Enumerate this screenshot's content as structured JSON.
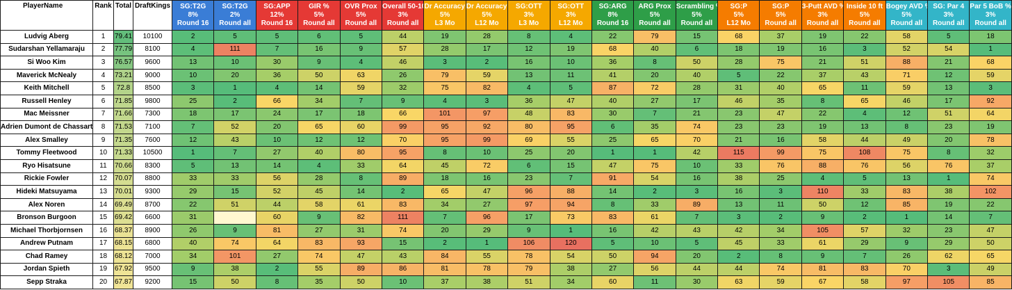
{
  "header": {
    "player_name": "PlayerName",
    "rank": "Rank",
    "total": "Total",
    "draftkings": "DraftKings",
    "stats": [
      {
        "l1": "SG:T2G",
        "l2": "8%",
        "l3": "Round 16",
        "color": "#3a7dd6"
      },
      {
        "l1": "SG:T2G",
        "l2": "2%",
        "l3": "Round all",
        "color": "#3a7dd6"
      },
      {
        "l1": "SG:APP",
        "l2": "12%",
        "l3": "Round 16",
        "color": "#e53935"
      },
      {
        "l1": "GIR %",
        "l2": "5%",
        "l3": "Round all",
        "color": "#e53935"
      },
      {
        "l1": "OVR Prox",
        "l2": "5%",
        "l3": "Round all",
        "color": "#e53935"
      },
      {
        "l1": "Overall 50-100",
        "l2": "3%",
        "l3": "Round all",
        "color": "#e53935"
      },
      {
        "l1": "Dr Accuracy %",
        "l2": "5%",
        "l3": "L3 Mo",
        "color": "#f5a800"
      },
      {
        "l1": "Dr Accuracy %",
        "l2": "5%",
        "l3": "L12 Mo",
        "color": "#f5a800"
      },
      {
        "l1": "SG:OTT",
        "l2": "3%",
        "l3": "L3 Mo",
        "color": "#f5a800"
      },
      {
        "l1": "SG:OTT",
        "l2": "3%",
        "l3": "L12 Mo",
        "color": "#f5a800"
      },
      {
        "l1": "SG:ARG",
        "l2": "8%",
        "l3": "Round 16",
        "color": "#2e9e48"
      },
      {
        "l1": "ARG Prox",
        "l2": "5%",
        "l3": "Round all",
        "color": "#2e9e48"
      },
      {
        "l1": "Scrambling %",
        "l2": "5%",
        "l3": "Round all",
        "color": "#2e9e48"
      },
      {
        "l1": "SG:P",
        "l2": "5%",
        "l3": "L12 Mo",
        "color": "#f57c00"
      },
      {
        "l1": "SG:P",
        "l2": "5%",
        "l3": "Round all",
        "color": "#f57c00"
      },
      {
        "l1": "3-Putt AVD %",
        "l2": "3%",
        "l3": "Round all",
        "color": "#f57c00"
      },
      {
        "l1": "Inside 10 ft",
        "l2": "5%",
        "l3": "Round all",
        "color": "#f57c00"
      },
      {
        "l1": "Bogey AVD %",
        "l2": "5%",
        "l3": "Round all",
        "color": "#33b5c8"
      },
      {
        "l1": "SG: Par 4",
        "l2": "3%",
        "l3": "Round all",
        "color": "#33b5c8"
      },
      {
        "l1": "Par 5 BoB %",
        "l2": "3%",
        "l3": "Round all",
        "color": "#33b5c8"
      }
    ]
  },
  "rows": [
    {
      "name": "Ludvig Aberg",
      "rank": "1",
      "total": "79.41",
      "dk": "10100",
      "stats": [
        "2",
        "5",
        "5",
        "6",
        "5",
        "44",
        "19",
        "28",
        "8",
        "4",
        "22",
        "79",
        "15",
        "68",
        "37",
        "19",
        "22",
        "58",
        "5",
        "18"
      ]
    },
    {
      "name": "Sudarshan Yellamaraju",
      "rank": "2",
      "total": "77.79",
      "dk": "8100",
      "stats": [
        "4",
        "111",
        "7",
        "16",
        "9",
        "57",
        "28",
        "17",
        "12",
        "19",
        "68",
        "40",
        "6",
        "18",
        "19",
        "16",
        "3",
        "52",
        "54",
        "1"
      ]
    },
    {
      "name": "Si Woo Kim",
      "rank": "3",
      "total": "76.57",
      "dk": "9600",
      "stats": [
        "13",
        "10",
        "30",
        "9",
        "4",
        "46",
        "3",
        "2",
        "16",
        "10",
        "36",
        "8",
        "50",
        "28",
        "75",
        "21",
        "51",
        "88",
        "21",
        "68"
      ]
    },
    {
      "name": "Maverick McNealy",
      "rank": "4",
      "total": "73.21",
      "dk": "9000",
      "stats": [
        "10",
        "20",
        "36",
        "50",
        "63",
        "26",
        "79",
        "59",
        "13",
        "11",
        "41",
        "20",
        "40",
        "5",
        "22",
        "37",
        "43",
        "71",
        "12",
        "59"
      ]
    },
    {
      "name": "Keith Mitchell",
      "rank": "5",
      "total": "72.8",
      "dk": "8500",
      "stats": [
        "3",
        "1",
        "4",
        "14",
        "59",
        "32",
        "75",
        "82",
        "4",
        "5",
        "87",
        "72",
        "28",
        "31",
        "40",
        "65",
        "11",
        "59",
        "13",
        "3"
      ]
    },
    {
      "name": "Russell Henley",
      "rank": "6",
      "total": "71.85",
      "dk": "9800",
      "stats": [
        "25",
        "2",
        "66",
        "34",
        "7",
        "9",
        "4",
        "3",
        "36",
        "47",
        "40",
        "27",
        "17",
        "46",
        "35",
        "8",
        "65",
        "46",
        "17",
        "92"
      ]
    },
    {
      "name": "Mac Meissner",
      "rank": "7",
      "total": "71.66",
      "dk": "7300",
      "stats": [
        "18",
        "17",
        "24",
        "17",
        "18",
        "66",
        "101",
        "97",
        "48",
        "83",
        "30",
        "7",
        "21",
        "23",
        "47",
        "22",
        "4",
        "12",
        "51",
        "64"
      ]
    },
    {
      "name": "Adrien Dumont de Chassart",
      "rank": "8",
      "total": "71.53",
      "dk": "7100",
      "stats": [
        "7",
        "52",
        "20",
        "65",
        "60",
        "99",
        "95",
        "92",
        "80",
        "95",
        "6",
        "35",
        "74",
        "23",
        "23",
        "19",
        "13",
        "8",
        "23",
        "19"
      ]
    },
    {
      "name": "Alex Smalley",
      "rank": "9",
      "total": "71.35",
      "dk": "7600",
      "stats": [
        "12",
        "43",
        "10",
        "12",
        "12",
        "70",
        "95",
        "99",
        "69",
        "55",
        "25",
        "65",
        "70",
        "21",
        "16",
        "58",
        "44",
        "49",
        "20",
        "78"
      ]
    },
    {
      "name": "Tommy Fleetwood",
      "rank": "10",
      "total": "71.33",
      "dk": "10500",
      "stats": [
        "1",
        "7",
        "27",
        "40",
        "80",
        "95",
        "8",
        "10",
        "25",
        "20",
        "1",
        "1",
        "42",
        "115",
        "99",
        "75",
        "108",
        "75",
        "8",
        "32"
      ]
    },
    {
      "name": "Ryo Hisatsune",
      "rank": "11",
      "total": "70.66",
      "dk": "8300",
      "stats": [
        "5",
        "13",
        "14",
        "4",
        "33",
        "64",
        "45",
        "72",
        "6",
        "15",
        "47",
        "75",
        "10",
        "33",
        "76",
        "88",
        "76",
        "56",
        "76",
        "37"
      ]
    },
    {
      "name": "Rickie Fowler",
      "rank": "12",
      "total": "70.07",
      "dk": "8800",
      "stats": [
        "33",
        "33",
        "56",
        "28",
        "8",
        "89",
        "18",
        "16",
        "23",
        "7",
        "91",
        "54",
        "16",
        "38",
        "25",
        "4",
        "5",
        "13",
        "1",
        "74"
      ]
    },
    {
      "name": "Hideki Matsuyama",
      "rank": "13",
      "total": "70.01",
      "dk": "9300",
      "stats": [
        "29",
        "15",
        "52",
        "45",
        "14",
        "2",
        "65",
        "47",
        "96",
        "88",
        "14",
        "2",
        "3",
        "16",
        "3",
        "110",
        "33",
        "83",
        "38",
        "102"
      ]
    },
    {
      "name": "Alex Noren",
      "rank": "14",
      "total": "69.49",
      "dk": "8700",
      "stats": [
        "22",
        "51",
        "44",
        "58",
        "61",
        "83",
        "34",
        "27",
        "97",
        "94",
        "8",
        "33",
        "89",
        "13",
        "11",
        "50",
        "12",
        "85",
        "19",
        "22"
      ]
    },
    {
      "name": "Bronson Burgoon",
      "rank": "15",
      "total": "69.42",
      "dk": "6600",
      "stats": [
        "31",
        "",
        "60",
        "9",
        "82",
        "111",
        "7",
        "96",
        "17",
        "73",
        "83",
        "61",
        "7",
        "3",
        "2",
        "9",
        "2",
        "1",
        "14",
        "7"
      ]
    },
    {
      "name": "Michael Thorbjornsen",
      "rank": "16",
      "total": "68.37",
      "dk": "8900",
      "stats": [
        "26",
        "9",
        "81",
        "27",
        "31",
        "74",
        "20",
        "29",
        "9",
        "1",
        "16",
        "42",
        "43",
        "42",
        "34",
        "105",
        "57",
        "32",
        "23",
        "47"
      ]
    },
    {
      "name": "Andrew Putnam",
      "rank": "17",
      "total": "68.15",
      "dk": "6800",
      "stats": [
        "40",
        "74",
        "64",
        "83",
        "93",
        "15",
        "2",
        "1",
        "106",
        "120",
        "5",
        "10",
        "5",
        "45",
        "33",
        "61",
        "29",
        "9",
        "29",
        "50"
      ]
    },
    {
      "name": "Chad Ramey",
      "rank": "18",
      "total": "68.12",
      "dk": "7000",
      "stats": [
        "34",
        "101",
        "27",
        "74",
        "47",
        "43",
        "84",
        "55",
        "78",
        "54",
        "50",
        "94",
        "20",
        "2",
        "8",
        "9",
        "7",
        "26",
        "62",
        "65"
      ]
    },
    {
      "name": "Jordan Spieth",
      "rank": "19",
      "total": "67.92",
      "dk": "9500",
      "stats": [
        "9",
        "38",
        "2",
        "55",
        "89",
        "86",
        "81",
        "78",
        "79",
        "38",
        "27",
        "56",
        "44",
        "44",
        "74",
        "81",
        "83",
        "70",
        "3",
        "49"
      ]
    },
    {
      "name": "Sepp Straka",
      "rank": "20",
      "total": "67.87",
      "dk": "9200",
      "stats": [
        "15",
        "50",
        "8",
        "35",
        "50",
        "10",
        "37",
        "38",
        "51",
        "34",
        "60",
        "11",
        "30",
        "63",
        "59",
        "67",
        "58",
        "97",
        "105",
        "85"
      ]
    }
  ]
}
